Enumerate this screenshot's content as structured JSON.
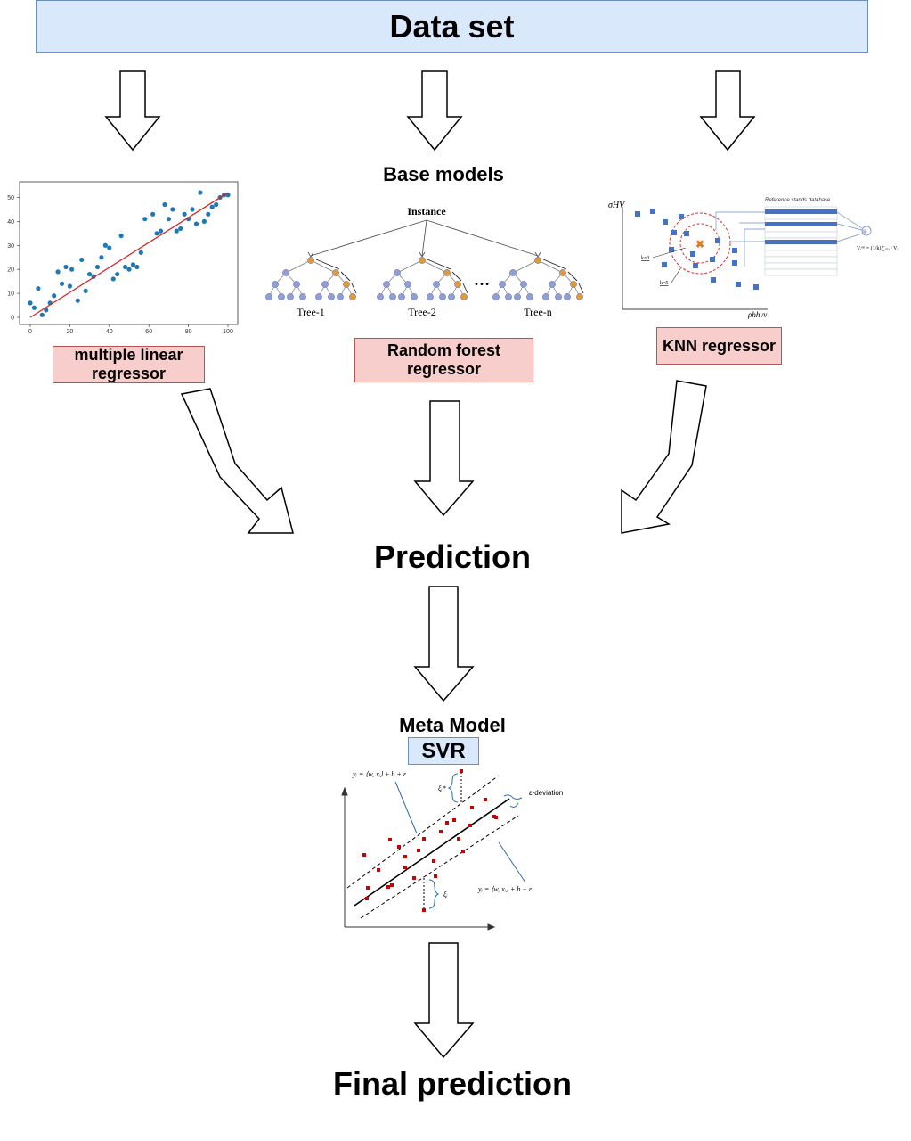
{
  "header": {
    "title": "Data set"
  },
  "base_models_label": "Base models",
  "models": {
    "mlr": {
      "label": "multiple linear regressor",
      "chart_data": {
        "type": "scatter",
        "x_ticks": [
          "0",
          "20",
          "40",
          "60",
          "80",
          "100"
        ],
        "y_ticks": [
          "0",
          "10",
          "20",
          "30",
          "40",
          "50"
        ],
        "xlim": [
          0,
          100
        ],
        "ylim": [
          0,
          55
        ],
        "points": [
          [
            0,
            6
          ],
          [
            2,
            4
          ],
          [
            4,
            12
          ],
          [
            6,
            1
          ],
          [
            8,
            3
          ],
          [
            10,
            6
          ],
          [
            12,
            9
          ],
          [
            14,
            19
          ],
          [
            16,
            14
          ],
          [
            18,
            21
          ],
          [
            20,
            13
          ],
          [
            21,
            20
          ],
          [
            24,
            7
          ],
          [
            26,
            24
          ],
          [
            28,
            11
          ],
          [
            30,
            18
          ],
          [
            32,
            17
          ],
          [
            34,
            21
          ],
          [
            36,
            25
          ],
          [
            38,
            30
          ],
          [
            40,
            29
          ],
          [
            42,
            16
          ],
          [
            44,
            18
          ],
          [
            46,
            34
          ],
          [
            48,
            21
          ],
          [
            50,
            20
          ],
          [
            52,
            22
          ],
          [
            54,
            21
          ],
          [
            56,
            27
          ],
          [
            58,
            41
          ],
          [
            62,
            43
          ],
          [
            64,
            35
          ],
          [
            66,
            36
          ],
          [
            68,
            47
          ],
          [
            70,
            41
          ],
          [
            72,
            45
          ],
          [
            74,
            36
          ],
          [
            76,
            37
          ],
          [
            78,
            43
          ],
          [
            80,
            41
          ],
          [
            82,
            45
          ],
          [
            84,
            39
          ],
          [
            86,
            52
          ],
          [
            88,
            40
          ],
          [
            90,
            43
          ],
          [
            92,
            46
          ],
          [
            94,
            47
          ],
          [
            96,
            50
          ],
          [
            98,
            51
          ],
          [
            100,
            51
          ]
        ],
        "fit_line": [
          [
            0,
            0
          ],
          [
            100,
            52
          ]
        ],
        "point_color": "#1f77b4",
        "line_color": "#d62728"
      }
    },
    "rf": {
      "label": "Random forest regressor",
      "instance_label": "Instance",
      "trees": [
        "Tree-1",
        "Tree-2",
        "Tree-n"
      ],
      "ellipsis": "…"
    },
    "knn": {
      "label": "KNN regressor",
      "db_label": "Reference stands database",
      "y_axis": "σHV",
      "x_axis": "ρhhvv",
      "k3": "k=3",
      "k5": "k=5",
      "formula": "Vᵢᵉˢᵗ = (1/k)∑ᵢ₌₁ᵏ Vᵢ"
    }
  },
  "prediction_label": "Prediction",
  "meta": {
    "label": "Meta Model",
    "svr_label": "SVR",
    "upper_eq": "yᵢ = ⟨w, xᵢ⟩ + b + ε",
    "lower_eq": "yᵢ = ⟨w, xᵢ⟩ + b − ε",
    "eps_label": "ε-deviation",
    "xi_star": "ξᵢ*",
    "xi": "ξᵢ",
    "point_color": "#cc0000"
  },
  "final_label": "Final prediction",
  "colors": {
    "header_fill": "#dae8fc",
    "model_box_fill": "#f8cecc",
    "tree_blue": "#8f9fd6",
    "tree_orange": "#e09a3c",
    "knn_blue": "#4472c4"
  }
}
